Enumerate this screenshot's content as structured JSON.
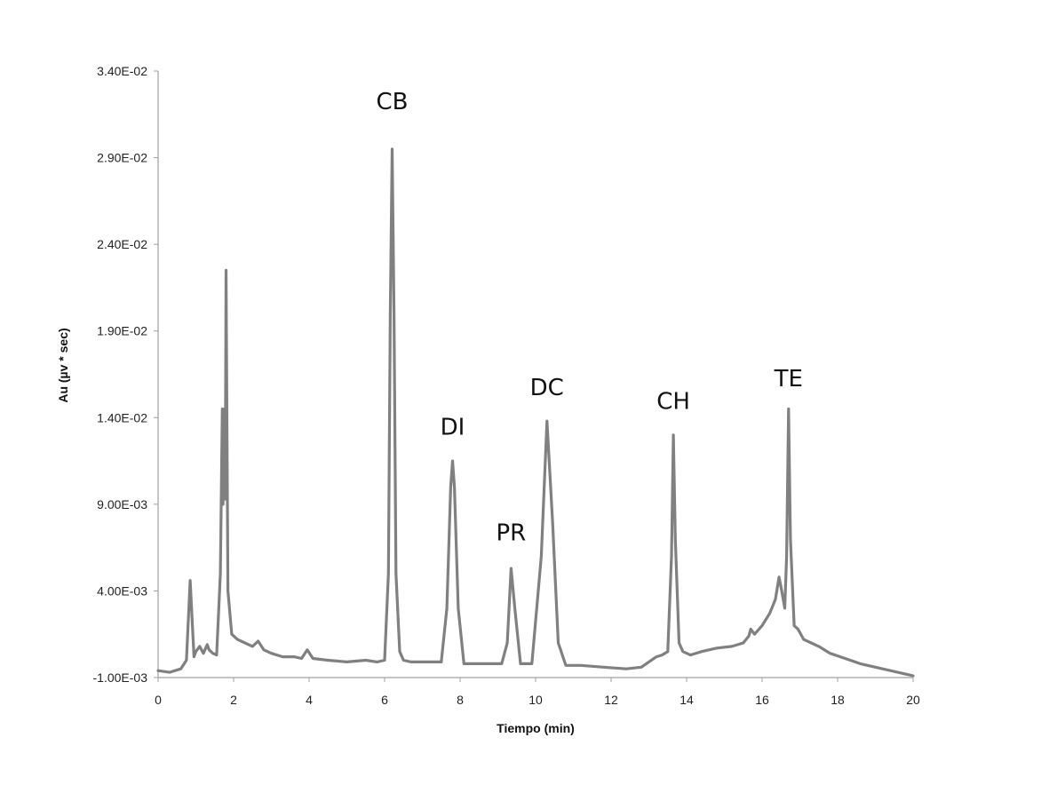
{
  "chart_data": {
    "type": "line",
    "title": "",
    "xlabel": "Tiempo (min)",
    "ylabel": "Au (µv * sec)",
    "xlim": [
      0,
      20
    ],
    "ylim": [
      -0.001,
      0.034
    ],
    "x_ticks": [
      "0",
      "2",
      "4",
      "6",
      "8",
      "10",
      "12",
      "14",
      "16",
      "18",
      "20"
    ],
    "y_ticks": [
      "-1.00E-03",
      "4.00E-03",
      "9.00E-03",
      "1.40E-02",
      "1.90E-02",
      "2.40E-02",
      "2.90E-02",
      "3.40E-02"
    ],
    "grid": false,
    "legend": "none",
    "colors": {
      "series": "#808080",
      "axis": "#a0a0a0",
      "text": "#111111"
    },
    "annotations": [
      {
        "text": "CB",
        "x": 6.2,
        "y": 0.0315
      },
      {
        "text": "DI",
        "x": 7.8,
        "y": 0.0127
      },
      {
        "text": "PR",
        "x": 9.35,
        "y": 0.0066
      },
      {
        "text": "DC",
        "x": 10.3,
        "y": 0.015
      },
      {
        "text": "CH",
        "x": 13.65,
        "y": 0.0142
      },
      {
        "text": "TE",
        "x": 16.7,
        "y": 0.0155
      }
    ],
    "series": [
      {
        "x": [
          0,
          0.3,
          0.6,
          0.75,
          0.85,
          0.95,
          1.0,
          1.1,
          1.2,
          1.3,
          1.35,
          1.45,
          1.55,
          1.65,
          1.7,
          1.72,
          1.75,
          1.78,
          1.8,
          1.85,
          1.95,
          2.1,
          2.3,
          2.5,
          2.65,
          2.8,
          3.0,
          3.3,
          3.6,
          3.8,
          3.95,
          4.1,
          4.5,
          5.0,
          5.5,
          5.8,
          6.0,
          6.1,
          6.15,
          6.2,
          6.25,
          6.3,
          6.4,
          6.5,
          6.7,
          7.0,
          7.3,
          7.5,
          7.65,
          7.75,
          7.8,
          7.85,
          7.95,
          8.1,
          8.4,
          8.8,
          9.1,
          9.25,
          9.35,
          9.45,
          9.6,
          9.9,
          10.15,
          10.3,
          10.45,
          10.6,
          10.8,
          11.2,
          11.8,
          12.4,
          12.8,
          13.0,
          13.2,
          13.35,
          13.5,
          13.6,
          13.65,
          13.7,
          13.8,
          13.9,
          14.1,
          14.4,
          14.8,
          15.2,
          15.5,
          15.65,
          15.7,
          15.8,
          16.0,
          16.2,
          16.35,
          16.45,
          16.52,
          16.6,
          16.65,
          16.7,
          16.75,
          16.85,
          16.95,
          17.1,
          17.3,
          17.5,
          17.8,
          18.2,
          18.6,
          19.0,
          19.4,
          19.8,
          20.0
        ],
        "y": [
          -0.0006,
          -0.0007,
          -0.0005,
          0.0,
          0.0046,
          0.0002,
          0.0005,
          0.0008,
          0.0004,
          0.0009,
          0.0006,
          0.0004,
          0.0003,
          0.005,
          0.0145,
          0.009,
          0.0145,
          0.0093,
          0.0225,
          0.004,
          0.0015,
          0.0012,
          0.001,
          0.0008,
          0.0011,
          0.0006,
          0.0004,
          0.0002,
          0.0002,
          0.0001,
          0.0006,
          0.0001,
          0.0,
          -0.0001,
          0.0,
          -0.0001,
          0.0,
          0.005,
          0.02,
          0.0295,
          0.02,
          0.005,
          0.0005,
          0.0,
          -0.0001,
          -0.0001,
          -0.0001,
          -0.0001,
          0.003,
          0.01,
          0.0115,
          0.01,
          0.003,
          -0.0002,
          -0.0002,
          -0.0002,
          -0.0002,
          0.001,
          0.0053,
          0.003,
          -0.0002,
          -0.0002,
          0.006,
          0.0138,
          0.008,
          0.001,
          -0.0003,
          -0.0003,
          -0.0004,
          -0.0005,
          -0.0004,
          -0.0001,
          0.0002,
          0.0003,
          0.0005,
          0.006,
          0.013,
          0.007,
          0.001,
          0.0005,
          0.0003,
          0.0005,
          0.0007,
          0.0008,
          0.001,
          0.0014,
          0.0018,
          0.0015,
          0.002,
          0.0027,
          0.0035,
          0.0048,
          0.004,
          0.003,
          0.006,
          0.0145,
          0.007,
          0.002,
          0.0018,
          0.0012,
          0.001,
          0.0008,
          0.0004,
          0.0001,
          -0.0002,
          -0.0004,
          -0.0006,
          -0.0008,
          -0.0009
        ]
      }
    ]
  }
}
